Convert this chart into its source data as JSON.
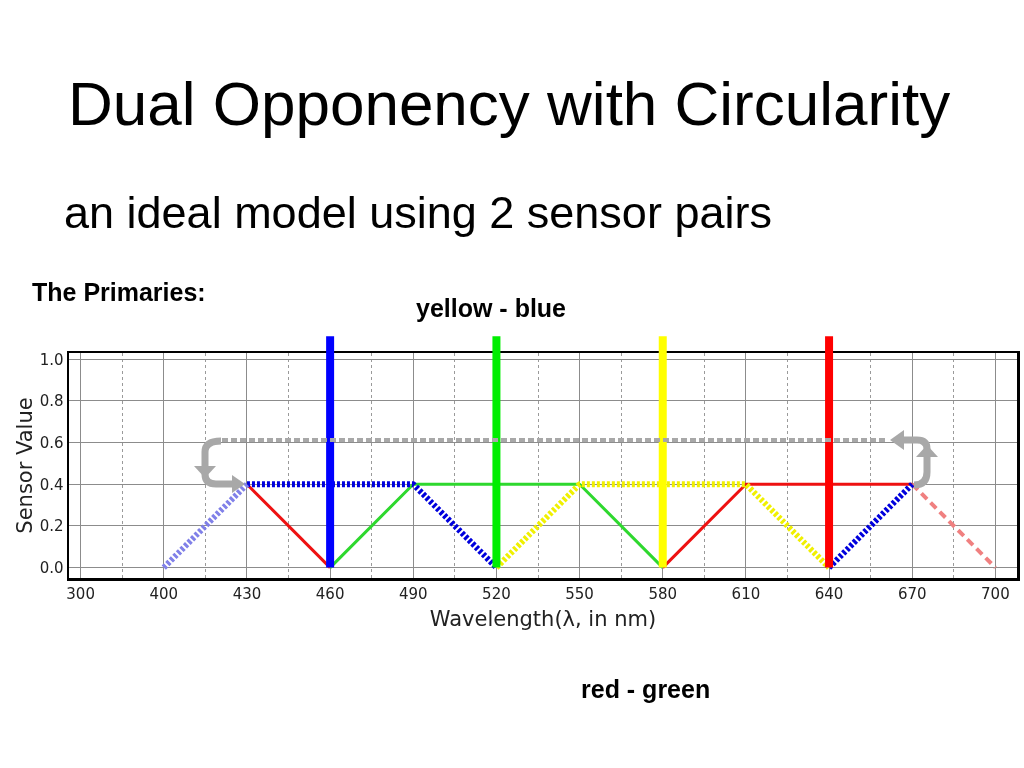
{
  "chart_data": {
    "type": "line",
    "title": "Dual Opponency with Circularity",
    "subtitle": "an ideal model using 2 sensor pairs",
    "xlabel": "Wavelength(λ, in nm)",
    "ylabel": "Sensor Value",
    "annotations": [
      "The Primaries:",
      "yellow - blue",
      "red - green"
    ],
    "categories": [
      "300",
      "400",
      "430",
      "460",
      "490",
      "520",
      "550",
      "580",
      "610",
      "640",
      "670",
      "700"
    ],
    "series": [
      {
        "color": "#ee1111",
        "line_style": "solid",
        "values": [
          null,
          null,
          0.4,
          0,
          null,
          null,
          null,
          0,
          0.4,
          0.4,
          0.4,
          null
        ]
      },
      {
        "color": "#f08080",
        "line_style": "dashed",
        "values": [
          null,
          null,
          null,
          null,
          null,
          null,
          null,
          null,
          null,
          null,
          0.4,
          0
        ]
      },
      {
        "color": "#2ed82e",
        "line_style": "solid",
        "values": [
          null,
          null,
          null,
          0,
          0.4,
          0.4,
          0.4,
          0,
          null,
          null,
          null,
          null
        ]
      },
      {
        "color": "#0000dd",
        "line_style": "dotted",
        "values": [
          null,
          null,
          0.4,
          0.4,
          0.4,
          0,
          null,
          null,
          null,
          0,
          0.4,
          null
        ]
      },
      {
        "color": "#8080e8",
        "line_style": "dotted",
        "values": [
          null,
          0,
          0.4,
          null,
          null,
          null,
          null,
          null,
          null,
          null,
          null,
          null
        ]
      },
      {
        "color": "#f0f000",
        "line_style": "dotted",
        "values": [
          null,
          null,
          null,
          null,
          null,
          0,
          0.4,
          0.4,
          0.4,
          0,
          null,
          null
        ]
      }
    ],
    "ref_lines": [
      {
        "axis": "x",
        "value": "460",
        "color": "#0000ff"
      },
      {
        "axis": "x",
        "value": "520",
        "color": "#00ee00"
      },
      {
        "axis": "x",
        "value": "580",
        "color": "#ffff00"
      },
      {
        "axis": "x",
        "value": "640",
        "color": "#ff0000"
      }
    ],
    "ylim": [
      -0.05,
      1.03
    ],
    "yticks": [
      {
        "value": 0,
        "label": "0.0"
      },
      0.2,
      0.4,
      0.6,
      0.8,
      {
        "value": 1,
        "label": "1.0"
      }
    ],
    "grid": true
  }
}
